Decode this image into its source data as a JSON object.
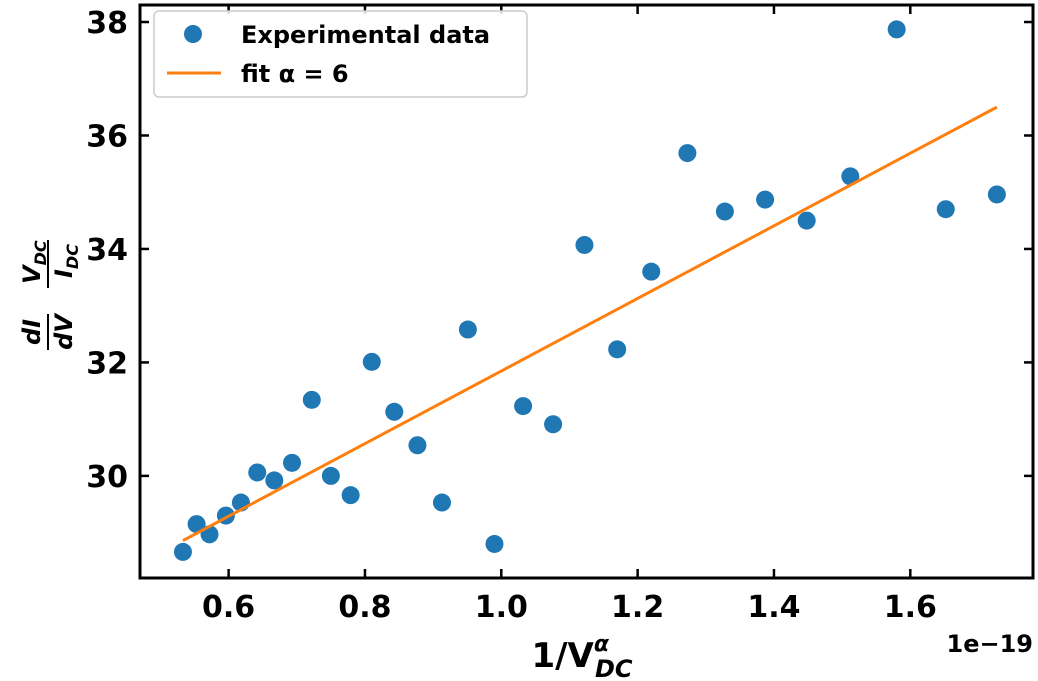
{
  "chart_data": {
    "type": "scatter",
    "xlabel": "1/V",
    "xlabel_sup": "α",
    "xlabel_sub": "DC",
    "ylabel_left_num": "dI",
    "ylabel_left_den": "dV",
    "ylabel_right_num": "V",
    "ylabel_right_num_sub": "DC",
    "ylabel_right_den": "I",
    "ylabel_right_den_sub": "DC",
    "x_offset_label": "1e−19",
    "xlim": [
      0.47,
      1.78
    ],
    "ylim": [
      28.2,
      38.3
    ],
    "x_ticks": [
      0.6,
      0.8,
      1.0,
      1.2,
      1.4,
      1.6
    ],
    "x_tick_labels": [
      "0.6",
      "0.8",
      "1.0",
      "1.2",
      "1.4",
      "1.6"
    ],
    "y_ticks": [
      30,
      32,
      34,
      36,
      38
    ],
    "y_tick_labels": [
      "30",
      "32",
      "34",
      "36",
      "38"
    ],
    "grid": false,
    "legend_position": "top-left",
    "series": [
      {
        "name": "Experimental data",
        "kind": "scatter",
        "color": "#1f77b4",
        "points": [
          {
            "x": 0.533,
            "y": 28.66
          },
          {
            "x": 0.553,
            "y": 29.15
          },
          {
            "x": 0.572,
            "y": 28.97
          },
          {
            "x": 0.596,
            "y": 29.3
          },
          {
            "x": 0.618,
            "y": 29.53
          },
          {
            "x": 0.642,
            "y": 30.06
          },
          {
            "x": 0.667,
            "y": 29.92
          },
          {
            "x": 0.693,
            "y": 30.23
          },
          {
            "x": 0.722,
            "y": 31.34
          },
          {
            "x": 0.75,
            "y": 30.0
          },
          {
            "x": 0.779,
            "y": 29.66
          },
          {
            "x": 0.81,
            "y": 32.01
          },
          {
            "x": 0.843,
            "y": 31.13
          },
          {
            "x": 0.877,
            "y": 30.54
          },
          {
            "x": 0.913,
            "y": 29.53
          },
          {
            "x": 0.951,
            "y": 32.58
          },
          {
            "x": 0.99,
            "y": 28.8
          },
          {
            "x": 1.032,
            "y": 31.23
          },
          {
            "x": 1.076,
            "y": 30.91
          },
          {
            "x": 1.122,
            "y": 34.07
          },
          {
            "x": 1.17,
            "y": 32.23
          },
          {
            "x": 1.22,
            "y": 33.6
          },
          {
            "x": 1.273,
            "y": 35.69
          },
          {
            "x": 1.328,
            "y": 34.66
          },
          {
            "x": 1.387,
            "y": 34.87
          },
          {
            "x": 1.448,
            "y": 34.5
          },
          {
            "x": 1.512,
            "y": 35.28
          },
          {
            "x": 1.58,
            "y": 37.87
          },
          {
            "x": 1.652,
            "y": 34.7
          },
          {
            "x": 1.727,
            "y": 34.96
          }
        ]
      },
      {
        "name": "fit α = 6",
        "kind": "line",
        "color": "#ff7f0e",
        "points": [
          {
            "x": 0.533,
            "y": 28.86
          },
          {
            "x": 1.727,
            "y": 36.5
          }
        ]
      }
    ]
  }
}
